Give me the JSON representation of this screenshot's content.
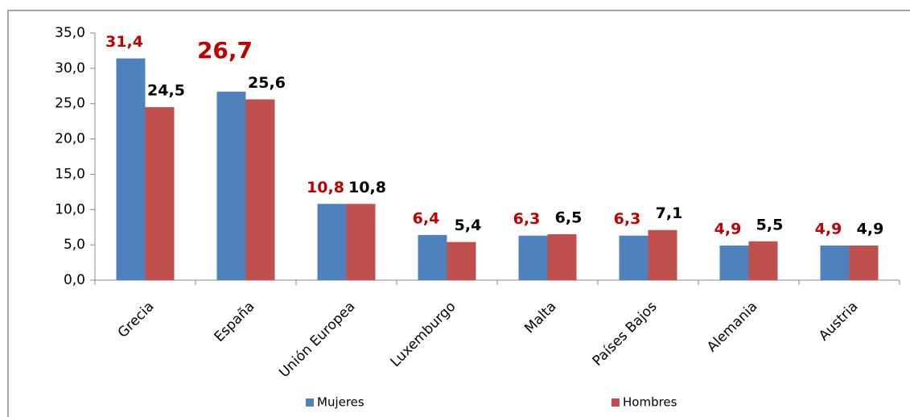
{
  "chart_data": {
    "type": "bar",
    "categories": [
      "Grecia",
      "España",
      "Unión Europea",
      "Luxemburgo",
      "Malta",
      "Países Bajos",
      "Alemania",
      "Austria"
    ],
    "series": [
      {
        "name": "Mujeres",
        "color": "#4f81bd",
        "label_color": "#c00000",
        "values": [
          31.4,
          26.7,
          10.8,
          6.4,
          6.3,
          6.3,
          4.9,
          4.9
        ],
        "value_labels": [
          "31,4",
          "26,7",
          "10,8",
          "6,4",
          "6,3",
          "6,3",
          "4,9",
          "4,9"
        ]
      },
      {
        "name": "Hombres",
        "color": "#c0504d",
        "label_color": "#000000",
        "values": [
          24.5,
          25.6,
          10.8,
          5.4,
          6.5,
          7.1,
          5.5,
          4.9
        ],
        "value_labels": [
          "24,5",
          "25,6",
          "10,8",
          "5,4",
          "6,5",
          "7,1",
          "5,5",
          "4,9"
        ]
      }
    ],
    "ylim": [
      0,
      35
    ],
    "yticks": [
      {
        "value": 0,
        "label": "0,0"
      },
      {
        "value": 5,
        "label": "5,0"
      },
      {
        "value": 10,
        "label": "10,0"
      },
      {
        "value": 15,
        "label": "15,0"
      },
      {
        "value": 20,
        "label": "20,0"
      },
      {
        "value": 25,
        "label": "25,0"
      },
      {
        "value": 30,
        "label": "30,0"
      },
      {
        "value": 35,
        "label": "35,0"
      }
    ],
    "legend": "bottom"
  }
}
